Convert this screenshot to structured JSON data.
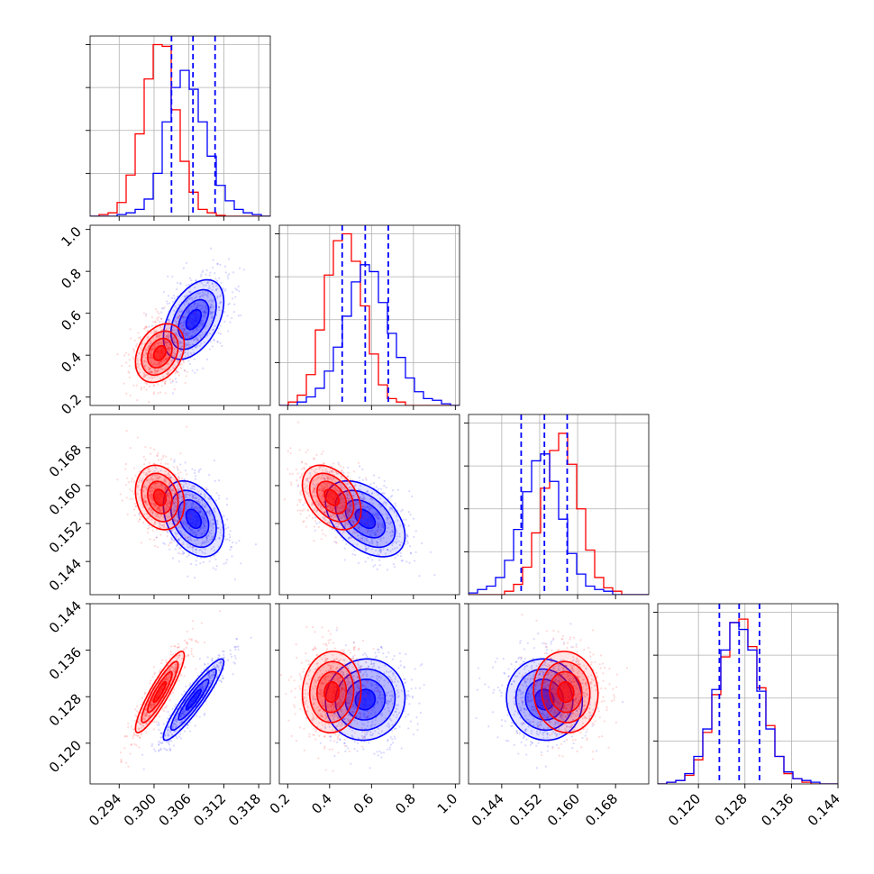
{
  "chart_data": {
    "type": "corner",
    "grid": true,
    "colors": {
      "red": "#ff0000",
      "blue": "#0000ff"
    },
    "parameters": [
      {
        "key": "p0",
        "range": [
          0.289,
          0.32
        ],
        "ticks": [
          "0.294",
          "0.300",
          "0.306",
          "0.312",
          "0.318"
        ]
      },
      {
        "key": "p1",
        "range": [
          0.16,
          1.02
        ],
        "ticks": [
          "0.2",
          "0.4",
          "0.6",
          "0.8",
          "1.0"
        ]
      },
      {
        "key": "p2",
        "range": [
          0.137,
          0.175
        ],
        "ticks": [
          "0.144",
          "0.152",
          "0.160",
          "0.168"
        ]
      },
      {
        "key": "p3",
        "range": [
          0.113,
          0.144
        ],
        "ticks": [
          "0.120",
          "0.128",
          "0.136",
          "0.144"
        ]
      }
    ],
    "series": [
      {
        "color": "#ff0000",
        "means": [
          0.301,
          0.41,
          0.1575,
          0.1288
        ],
        "sigmas": [
          0.0021,
          0.07,
          0.0034,
          0.0035
        ],
        "correlations": {
          "1-0": 0.3,
          "2-0": -0.2,
          "2-1": -0.4,
          "3-0": 0.9,
          "3-1": 0.05,
          "3-2": -0.05
        }
      },
      {
        "color": "#0000ff",
        "means": [
          0.3068,
          0.57,
          0.153,
          0.1275
        ],
        "sigmas": [
          0.0026,
          0.095,
          0.004,
          0.0035
        ],
        "correlations": {
          "1-0": 0.45,
          "2-0": -0.35,
          "2-1": -0.45,
          "3-0": 0.92,
          "3-1": 0.05,
          "3-2": -0.05
        }
      }
    ],
    "quantile_lines": {
      "color": "#0000ff",
      "style": "dashed",
      "values": [
        [
          0.303,
          0.3067,
          0.3105
        ],
        [
          0.46,
          0.57,
          0.68
        ],
        [
          0.1481,
          0.153,
          0.1578
        ],
        [
          0.1236,
          0.127,
          0.1305
        ]
      ]
    },
    "histograms": [
      {
        "edges_range": [
          0.289,
          0.32
        ],
        "red": [
          0,
          0.01,
          0.02,
          0.08,
          0.24,
          0.48,
          0.8,
          1.0,
          0.99,
          0.62,
          0.32,
          0.14,
          0.04,
          0.02,
          0.005,
          0,
          0,
          0,
          0,
          0
        ],
        "blue": [
          0,
          0,
          0,
          0.01,
          0.02,
          0.04,
          0.1,
          0.25,
          0.55,
          0.75,
          0.85,
          0.74,
          0.55,
          0.35,
          0.18,
          0.09,
          0.04,
          0.02,
          0.01,
          0
        ]
      },
      {
        "edges_range": [
          0.16,
          1.02
        ],
        "red": [
          0,
          0.02,
          0.06,
          0.18,
          0.44,
          0.76,
          0.96,
          1.0,
          0.84,
          0.58,
          0.3,
          0.12,
          0.04,
          0.02,
          0,
          0,
          0,
          0,
          0,
          0
        ],
        "blue": [
          0,
          0,
          0.02,
          0.05,
          0.1,
          0.2,
          0.34,
          0.52,
          0.72,
          0.82,
          0.78,
          0.6,
          0.42,
          0.28,
          0.16,
          0.08,
          0.04,
          0.03,
          0.01,
          0
        ],
        "ymax": 1.05
      },
      {
        "edges_range": [
          0.137,
          0.175
        ],
        "red": [
          0,
          0,
          0,
          0,
          0.02,
          0.06,
          0.16,
          0.36,
          0.62,
          0.84,
          0.94,
          0.76,
          0.5,
          0.26,
          0.1,
          0.04,
          0.02,
          0,
          0,
          0
        ],
        "blue": [
          0.01,
          0.03,
          0.05,
          0.1,
          0.2,
          0.38,
          0.6,
          0.78,
          0.82,
          0.66,
          0.44,
          0.24,
          0.12,
          0.05,
          0.03,
          0.02,
          0,
          0,
          0,
          0
        ]
      },
      {
        "edges_range": [
          0.113,
          0.144
        ],
        "red": [
          0,
          0.01,
          0.02,
          0.05,
          0.14,
          0.3,
          0.52,
          0.74,
          0.94,
          0.96,
          0.8,
          0.56,
          0.34,
          0.16,
          0.06,
          0.03,
          0.01,
          0,
          0,
          0
        ],
        "blue": [
          0,
          0.01,
          0.02,
          0.06,
          0.16,
          0.32,
          0.55,
          0.78,
          0.94,
          0.9,
          0.78,
          0.54,
          0.32,
          0.16,
          0.07,
          0.03,
          0.02,
          0.01,
          0,
          0
        ],
        "ymax": 1.05
      }
    ]
  }
}
